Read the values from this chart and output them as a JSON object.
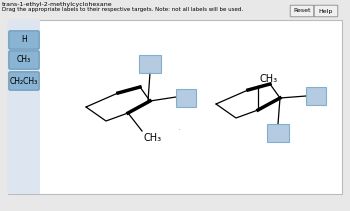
{
  "title": "trans-1-ethyl-2-methylcyclohexane",
  "subtitle": "Drag the appropriate labels to their respective targets. Note: not all labels will be used.",
  "bg_color": "#e8e8e8",
  "panel_bg": "#ffffff",
  "button_color": "#8ab4d4",
  "button_border": "#6090b0",
  "button_labels": [
    "H",
    "CH₃",
    "CH₂CH₃"
  ],
  "reset_btn": "Reset",
  "help_btn": "Help",
  "drop_box_color": "#adc6df",
  "drop_box_border": "#7aaac8",
  "ch3_label": "CH₃"
}
